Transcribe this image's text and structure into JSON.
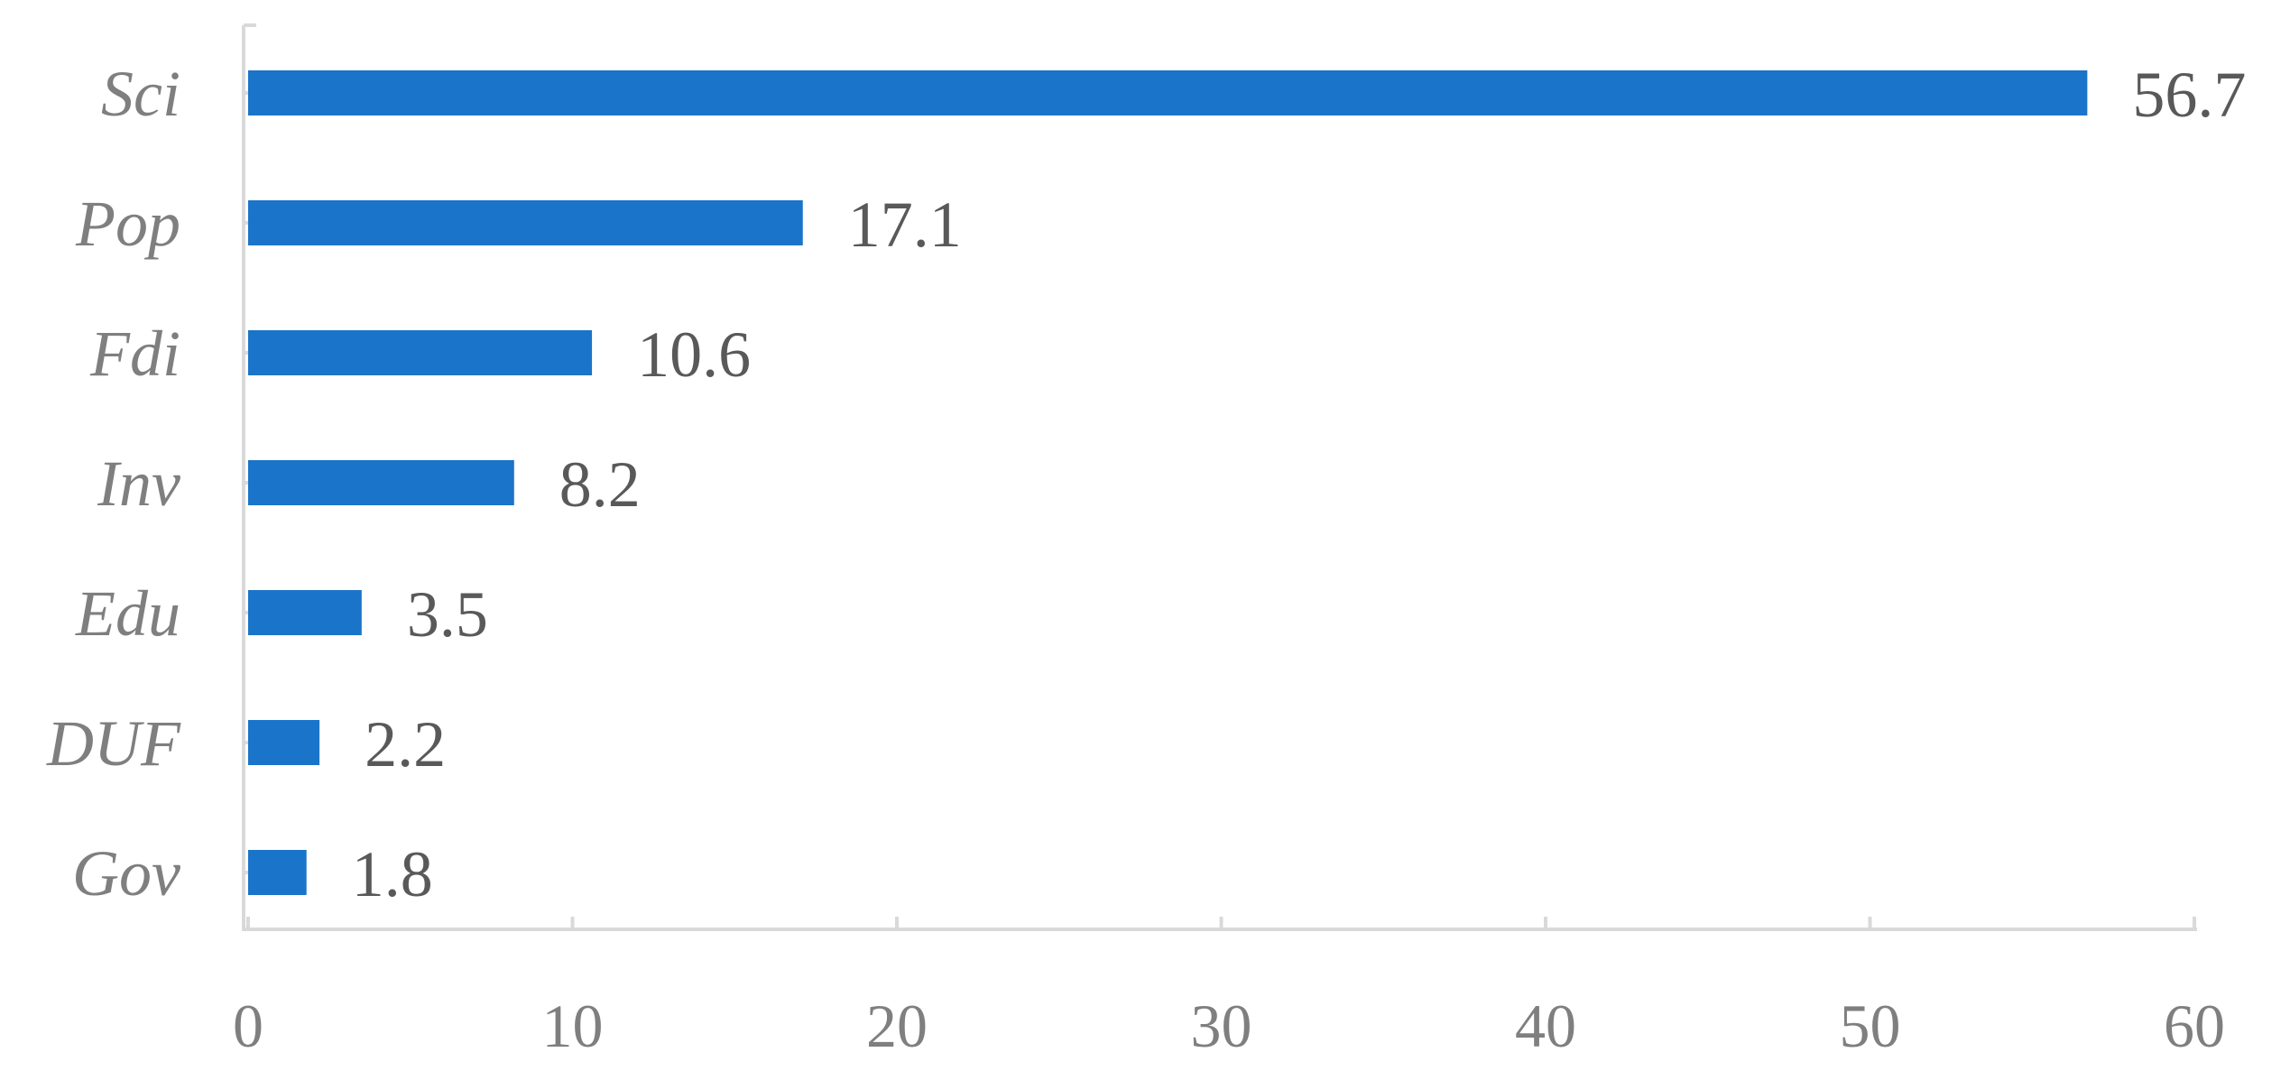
{
  "chart_data": {
    "type": "bar",
    "orientation": "horizontal",
    "categories": [
      "Sci",
      "Pop",
      "Fdi",
      "Inv",
      "Edu",
      "DUF",
      "Gov"
    ],
    "values": [
      56.7,
      17.1,
      10.6,
      8.2,
      3.5,
      2.2,
      1.8
    ],
    "data_labels": [
      "56.7",
      "17.1",
      "10.6",
      "8.2",
      "3.5",
      "2.2",
      "1.8"
    ],
    "xlim": [
      0,
      60
    ],
    "x_ticks": [
      0,
      10,
      20,
      30,
      40,
      50,
      60
    ],
    "x_tick_labels": [
      "0",
      "10",
      "20",
      "30",
      "40",
      "50",
      "60"
    ],
    "title": "",
    "xlabel": "",
    "ylabel": "",
    "grid": false,
    "legend": "none",
    "colors": {
      "bar": "#1a74c9",
      "axis": "#d9d9d9",
      "category_text": "#7f7f7f",
      "tick_text": "#7f7f7f",
      "value_text": "#595959"
    }
  }
}
